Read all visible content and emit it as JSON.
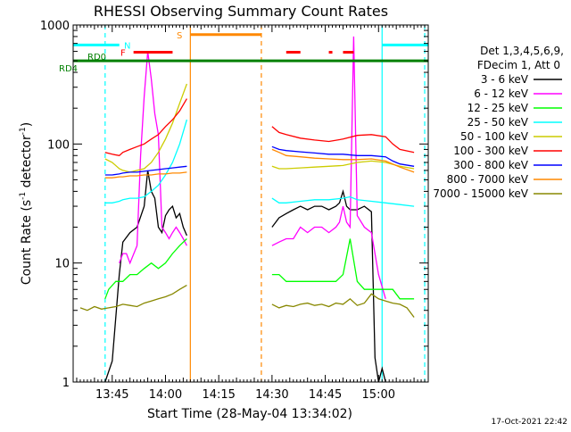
{
  "chart_data": {
    "type": "line",
    "title": "RHESSI Observing Summary Count Rates",
    "xlabel": "Start Time (28-May-04 13:34:02)",
    "ylabel_main": "Count Rate (s",
    "ylabel_sup1": "-1",
    "ylabel_mid": " detector",
    "ylabel_sup2": "-1",
    "ylabel_end": ")",
    "yscale": "log",
    "ylim": [
      1,
      1000
    ],
    "xlim_minutes": [
      0,
      100
    ],
    "x_ticks": [
      {
        "t": 11,
        "label": "13:45"
      },
      {
        "t": 26,
        "label": "14:00"
      },
      {
        "t": 41,
        "label": "14:15"
      },
      {
        "t": 56,
        "label": "14:30"
      },
      {
        "t": 71,
        "label": "14:45"
      },
      {
        "t": 86,
        "label": "15:00"
      }
    ],
    "y_ticks": [
      {
        "v": 1,
        "label": "1"
      },
      {
        "v": 10,
        "label": "10"
      },
      {
        "v": 100,
        "label": "100"
      },
      {
        "v": 1000,
        "label": "1000"
      }
    ],
    "legend": {
      "placement": "right",
      "header1": "Det 1,3,4,5,6,9,",
      "header2": "FDecim 1, Att 0"
    },
    "series": [
      {
        "name": "3 - 6 keV",
        "color": "#000000",
        "segments": [
          {
            "t": [
              9,
              11,
              13,
              14,
              16,
              18,
              20,
              21,
              22,
              23,
              24,
              25,
              26,
              27,
              28,
              29,
              30,
              31,
              32
            ],
            "v": [
              1,
              1.5,
              8,
              15,
              18,
              20,
              30,
              60,
              40,
              35,
              20,
              18,
              25,
              28,
              30,
              24,
              26,
              20,
              17
            ]
          },
          {
            "t": [
              56,
              58,
              60,
              62,
              64,
              66,
              68,
              70,
              72,
              74,
              75,
              76,
              77,
              78,
              80,
              82,
              84,
              85,
              86,
              87,
              88
            ],
            "v": [
              20,
              24,
              26,
              28,
              30,
              28,
              30,
              30,
              28,
              30,
              32,
              40,
              30,
              28,
              28,
              30,
              27,
              1.6,
              1,
              1.3,
              1
            ]
          }
        ]
      },
      {
        "name": "6 - 12 keV",
        "color": "#ff00ff",
        "segments": [
          {
            "t": [
              13,
              14,
              15,
              16,
              18,
              19,
              20,
              21,
              22,
              23,
              24,
              25,
              26,
              27,
              28,
              29,
              30,
              31,
              32
            ],
            "v": [
              10,
              12,
              12,
              10,
              14,
              80,
              250,
              600,
              350,
              180,
              120,
              20,
              18,
              16,
              18,
              20,
              18,
              16,
              14
            ]
          },
          {
            "t": [
              56,
              58,
              60,
              62,
              64,
              66,
              68,
              70,
              72,
              74,
              75,
              76,
              77,
              78,
              79,
              80,
              82,
              84,
              86,
              88
            ],
            "v": [
              14,
              15,
              16,
              16,
              20,
              18,
              20,
              20,
              18,
              20,
              22,
              30,
              22,
              20,
              800,
              25,
              20,
              18,
              8,
              5
            ]
          }
        ]
      },
      {
        "name": "12 - 25 keV",
        "color": "#00ff00",
        "segments": [
          {
            "t": [
              9,
              10,
              12,
              14,
              16,
              18,
              20,
              22,
              24,
              26,
              28,
              30,
              32
            ],
            "v": [
              5,
              6,
              7,
              7,
              8,
              8,
              9,
              10,
              9,
              10,
              12,
              14,
              16
            ]
          },
          {
            "t": [
              56,
              58,
              60,
              62,
              64,
              66,
              68,
              70,
              72,
              74,
              76,
              78,
              80,
              82,
              84,
              86,
              88,
              90,
              92,
              94,
              96
            ],
            "v": [
              8,
              8,
              7,
              7,
              7,
              7,
              7,
              7,
              7,
              7,
              8,
              16,
              7,
              6,
              6,
              6,
              6,
              6,
              5,
              5,
              5
            ]
          }
        ]
      },
      {
        "name": "25 - 50 keV",
        "color": "#00ffff",
        "segments": [
          {
            "t": [
              9,
              11,
              13,
              14,
              16,
              18,
              20,
              22,
              24,
              26,
              28,
              30,
              32
            ],
            "v": [
              32,
              32,
              33,
              34,
              35,
              35,
              36,
              40,
              45,
              55,
              70,
              100,
              160
            ]
          },
          {
            "t": [
              56,
              58,
              60,
              64,
              68,
              72,
              76,
              78,
              80,
              84,
              88,
              92,
              96
            ],
            "v": [
              35,
              32,
              32,
              33,
              34,
              34,
              35,
              36,
              34,
              33,
              32,
              31,
              30
            ]
          }
        ]
      },
      {
        "name": "50 - 100 keV",
        "color": "#cccc00",
        "segments": [
          {
            "t": [
              9,
              11,
              13,
              14,
              16,
              18,
              20,
              22,
              24,
              26,
              28,
              30,
              32
            ],
            "v": [
              75,
              70,
              62,
              60,
              58,
              60,
              62,
              70,
              85,
              110,
              150,
              220,
              320
            ]
          },
          {
            "t": [
              56,
              58,
              60,
              64,
              68,
              72,
              76,
              80,
              84,
              88,
              92,
              96
            ],
            "v": [
              65,
              62,
              62,
              63,
              64,
              65,
              66,
              70,
              72,
              70,
              65,
              62
            ]
          }
        ]
      },
      {
        "name": "100 - 300 keV",
        "color": "#ff0000",
        "segments": [
          {
            "t": [
              9,
              11,
              13,
              14,
              16,
              18,
              20,
              22,
              24,
              26,
              28,
              30,
              32
            ],
            "v": [
              85,
              82,
              80,
              85,
              90,
              95,
              100,
              110,
              120,
              140,
              160,
              190,
              240
            ]
          },
          {
            "t": [
              56,
              58,
              60,
              64,
              68,
              72,
              76,
              80,
              84,
              88,
              90,
              92,
              96
            ],
            "v": [
              140,
              125,
              120,
              112,
              108,
              105,
              110,
              118,
              120,
              115,
              100,
              90,
              85
            ]
          }
        ]
      },
      {
        "name": "300 - 800 keV",
        "color": "#0000ff",
        "segments": [
          {
            "t": [
              9,
              11,
              13,
              14,
              16,
              18,
              20,
              22,
              24,
              26,
              28,
              30,
              32
            ],
            "v": [
              55,
              55,
              56,
              57,
              58,
              58,
              59,
              60,
              61,
              62,
              63,
              64,
              65
            ]
          },
          {
            "t": [
              56,
              58,
              60,
              64,
              68,
              72,
              76,
              80,
              84,
              88,
              90,
              92,
              96
            ],
            "v": [
              95,
              90,
              88,
              86,
              84,
              82,
              82,
              80,
              80,
              78,
              72,
              68,
              65
            ]
          }
        ]
      },
      {
        "name": "800 - 7000 keV",
        "color": "#ff8800",
        "segments": [
          {
            "t": [
              9,
              11,
              13,
              14,
              16,
              18,
              20,
              22,
              24,
              26,
              28,
              30,
              32
            ],
            "v": [
              52,
              52,
              53,
              53,
              54,
              54,
              55,
              55,
              56,
              56,
              57,
              57,
              58
            ]
          },
          {
            "t": [
              56,
              58,
              60,
              64,
              68,
              72,
              76,
              80,
              84,
              88,
              92,
              96
            ],
            "v": [
              90,
              85,
              80,
              78,
              76,
              75,
              74,
              74,
              75,
              72,
              64,
              58
            ]
          }
        ]
      },
      {
        "name": "7000 - 15000 keV",
        "color": "#888800",
        "segments": [
          {
            "t": [
              2,
              4,
              6,
              8,
              10,
              12,
              14,
              16,
              18,
              20,
              22,
              24,
              26,
              28,
              30,
              32
            ],
            "v": [
              4.2,
              4.0,
              4.3,
              4.1,
              4.2,
              4.3,
              4.5,
              4.4,
              4.3,
              4.6,
              4.8,
              5,
              5.2,
              5.5,
              6,
              6.5
            ]
          },
          {
            "t": [
              56,
              58,
              60,
              62,
              64,
              66,
              68,
              70,
              72,
              74,
              76,
              78,
              80,
              82,
              84,
              86,
              88,
              90,
              92,
              94,
              96
            ],
            "v": [
              4.5,
              4.2,
              4.4,
              4.3,
              4.5,
              4.6,
              4.4,
              4.5,
              4.3,
              4.6,
              4.5,
              5,
              4.4,
              4.6,
              5.5,
              5,
              4.8,
              4.6,
              4.5,
              4.2,
              3.5
            ]
          }
        ]
      }
    ],
    "verticals": [
      {
        "t": 9,
        "color": "#00ffff",
        "dash": true
      },
      {
        "t": 33,
        "color": "#ff8800",
        "dash": false
      },
      {
        "t": 53,
        "color": "#ff8800",
        "dash": true
      },
      {
        "t": 87,
        "color": "#00ffff",
        "dash": false
      },
      {
        "t": 99,
        "color": "#00ffff",
        "dash": true
      }
    ],
    "flag_bars": [
      {
        "name": "RD4",
        "label": "RD4",
        "color": "#008000",
        "y_value": 500,
        "ranges": [
          [
            0,
            100
          ]
        ]
      },
      {
        "name": "RD0",
        "label": "RD0",
        "color": "#008000",
        "y_value": 500,
        "ranges": []
      },
      {
        "name": "N",
        "label": "N",
        "color": "#00ffff",
        "y_value": 680,
        "ranges": [
          [
            0,
            13
          ],
          [
            87,
            100
          ]
        ]
      },
      {
        "name": "F",
        "label": "F",
        "color": "#ff0000",
        "y_value": 590,
        "ranges": [
          [
            17,
            28
          ],
          [
            60,
            64
          ],
          [
            72,
            73
          ],
          [
            76,
            79
          ]
        ]
      },
      {
        "name": "S",
        "label": "S",
        "color": "#ff8800",
        "y_value": 830,
        "ranges": [
          [
            33,
            53
          ]
        ]
      }
    ],
    "timestamp": "17-Oct-2021 22:42"
  }
}
